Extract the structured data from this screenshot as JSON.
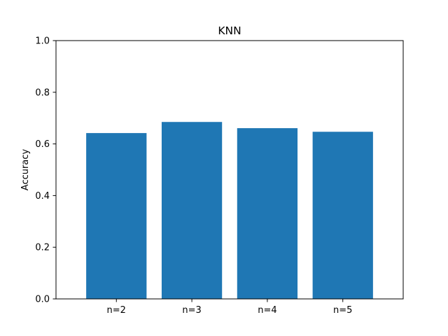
{
  "chart_data": {
    "type": "bar",
    "title": "KNN",
    "xlabel": "",
    "ylabel": "Accuracy",
    "categories": [
      "n=2",
      "n=3",
      "n=4",
      "n=5"
    ],
    "values": [
      0.642,
      0.685,
      0.661,
      0.647
    ],
    "ylim": [
      0,
      1.0
    ],
    "yticks": [
      {
        "value": 0.0,
        "label": "0.0"
      },
      {
        "value": 0.2,
        "label": "0.2"
      },
      {
        "value": 0.4,
        "label": "0.4"
      },
      {
        "value": 0.6,
        "label": "0.6"
      },
      {
        "value": 0.8,
        "label": "0.8"
      },
      {
        "value": 1.0,
        "label": "1.0"
      }
    ],
    "bar_color": "#1f77b4",
    "grid": false,
    "legend": "none"
  }
}
